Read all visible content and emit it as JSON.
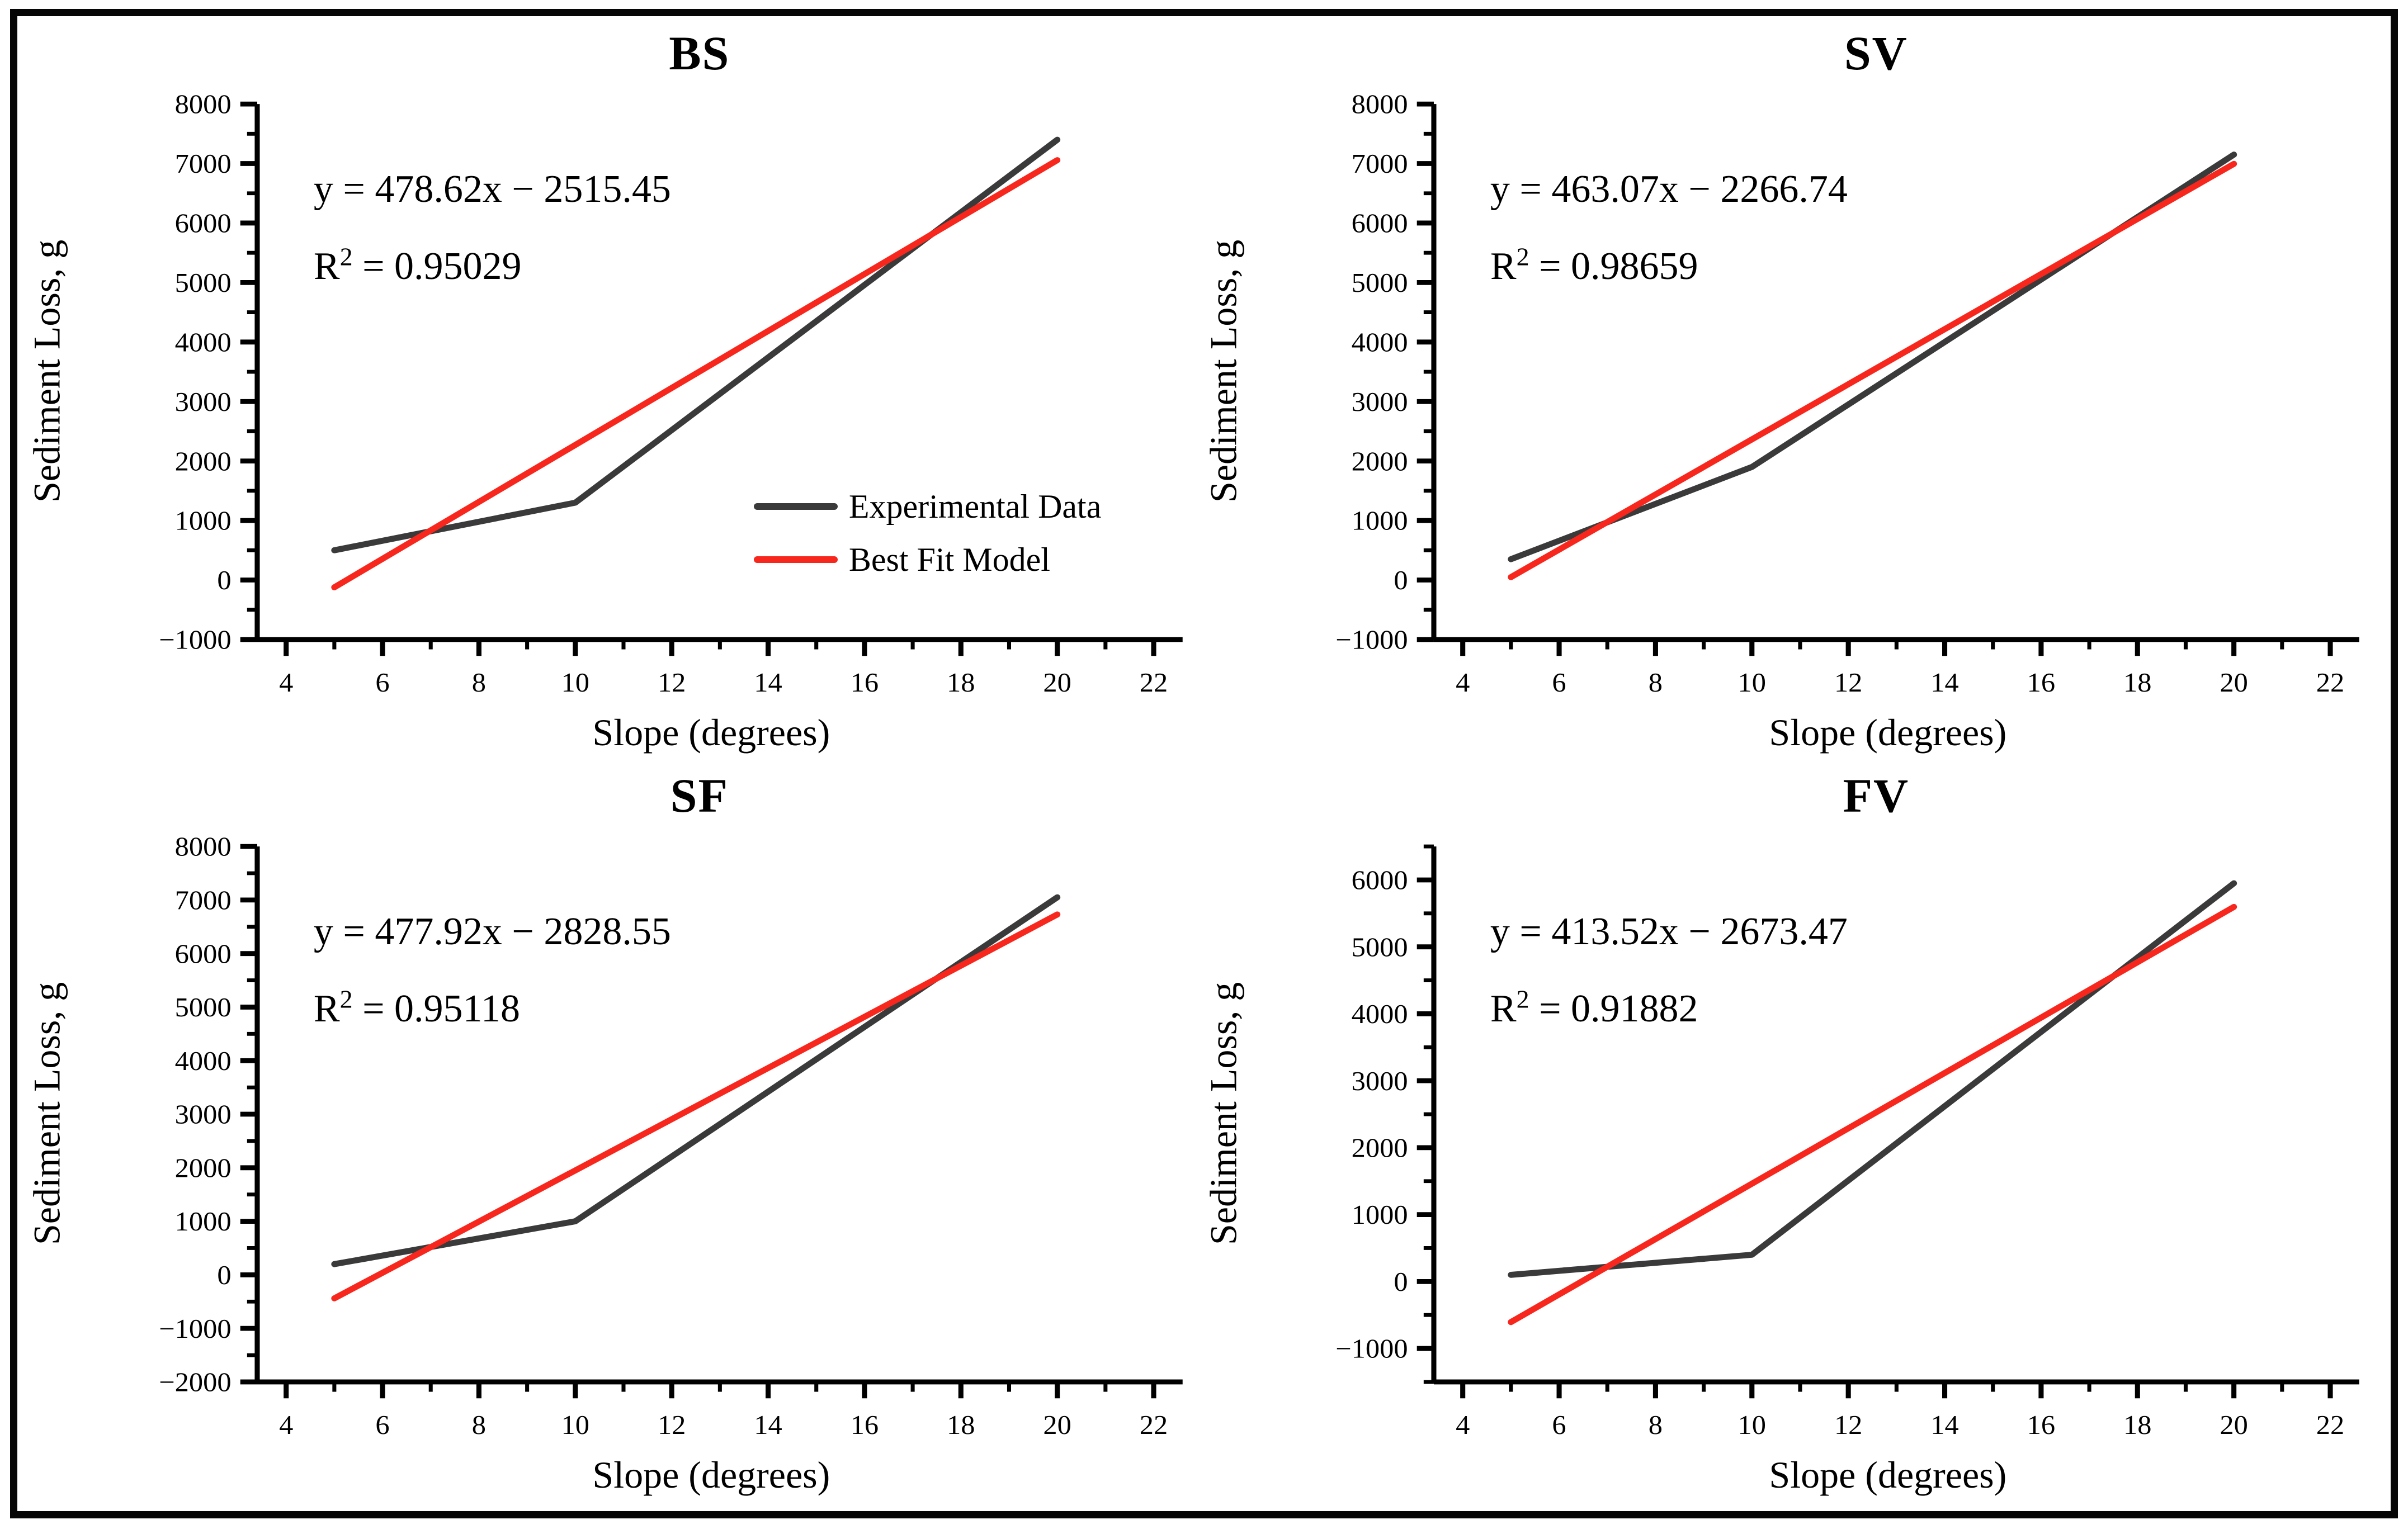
{
  "figure": {
    "background": "#ffffff",
    "frame_color": "#060606",
    "x_axis_label": "Slope (degrees)",
    "y_axis_label": "Sediment Loss, g"
  },
  "colors": {
    "experimental": "#3a3a3a",
    "best_fit": "#f8271d",
    "axis": "#000000"
  },
  "legend": {
    "items": [
      {
        "label": "Experimental Data",
        "color": "#3a3a3a"
      },
      {
        "label": "Best Fit Model",
        "color": "#f8271d"
      }
    ]
  },
  "chart_data": [
    {
      "type": "line",
      "title": "BS",
      "equation": "y = 478.62x − 2515.45",
      "r2": {
        "base": "R",
        "sup": "2",
        "rest": " = 0.95029"
      },
      "r_squared_value": 0.95029,
      "fit": {
        "slope": 478.62,
        "intercept": -2515.45
      },
      "xlabel": "Slope (degrees)",
      "ylabel": "Sediment Loss, g",
      "xlim": [
        3.4,
        22.6
      ],
      "ylim": [
        -1000,
        8000
      ],
      "xticks": [
        4,
        6,
        8,
        10,
        12,
        14,
        16,
        18,
        20,
        22
      ],
      "xminor": [
        5,
        7,
        9,
        11,
        13,
        15,
        17,
        19,
        21
      ],
      "yticks": [
        -1000,
        0,
        1000,
        2000,
        3000,
        4000,
        5000,
        6000,
        7000,
        8000
      ],
      "grid": false,
      "legend_position": "lower right inside",
      "show_legend": true,
      "series": [
        {
          "name": "Experimental Data",
          "color": "#3a3a3a",
          "x": [
            5,
            10,
            20
          ],
          "y": [
            500,
            1300,
            7400
          ]
        },
        {
          "name": "Best Fit Model",
          "color": "#f8271d",
          "x": [
            5,
            20
          ],
          "y": [
            -122.35,
            7057.0
          ]
        }
      ]
    },
    {
      "type": "line",
      "title": "SV",
      "equation": "y = 463.07x − 2266.74",
      "r2": {
        "base": "R",
        "sup": "2",
        "rest": " = 0.98659"
      },
      "r_squared_value": 0.98659,
      "fit": {
        "slope": 463.07,
        "intercept": -2266.74
      },
      "xlabel": "Slope (degrees)",
      "ylabel": "Sediment Loss, g",
      "xlim": [
        3.4,
        22.6
      ],
      "ylim": [
        -1000,
        8000
      ],
      "xticks": [
        4,
        6,
        8,
        10,
        12,
        14,
        16,
        18,
        20,
        22
      ],
      "xminor": [
        5,
        7,
        9,
        11,
        13,
        15,
        17,
        19,
        21
      ],
      "yticks": [
        -1000,
        0,
        1000,
        2000,
        3000,
        4000,
        5000,
        6000,
        7000,
        8000
      ],
      "grid": false,
      "show_legend": false,
      "series": [
        {
          "name": "Experimental Data",
          "color": "#3a3a3a",
          "x": [
            5,
            10,
            20
          ],
          "y": [
            350,
            1900,
            7150
          ]
        },
        {
          "name": "Best Fit Model",
          "color": "#f8271d",
          "x": [
            5,
            20
          ],
          "y": [
            48.61,
            6994.66
          ]
        }
      ]
    },
    {
      "type": "line",
      "title": "SF",
      "equation": "y = 477.92x − 2828.55",
      "r2": {
        "base": "R",
        "sup": "2",
        "rest": " = 0.95118"
      },
      "r_squared_value": 0.95118,
      "fit": {
        "slope": 477.92,
        "intercept": -2828.55
      },
      "xlabel": "Slope (degrees)",
      "ylabel": "Sediment Loss, g",
      "xlim": [
        3.4,
        22.6
      ],
      "ylim": [
        -2000,
        8000
      ],
      "xticks": [
        4,
        6,
        8,
        10,
        12,
        14,
        16,
        18,
        20,
        22
      ],
      "xminor": [
        5,
        7,
        9,
        11,
        13,
        15,
        17,
        19,
        21
      ],
      "yticks": [
        -2000,
        -1000,
        0,
        1000,
        2000,
        3000,
        4000,
        5000,
        6000,
        7000,
        8000
      ],
      "grid": false,
      "show_legend": false,
      "series": [
        {
          "name": "Experimental Data",
          "color": "#3a3a3a",
          "x": [
            5,
            10,
            20
          ],
          "y": [
            200,
            1000,
            7050
          ]
        },
        {
          "name": "Best Fit Model",
          "color": "#f8271d",
          "x": [
            5,
            20
          ],
          "y": [
            -438.95,
            6729.85
          ]
        }
      ]
    },
    {
      "type": "line",
      "title": "FV",
      "equation": "y = 413.52x − 2673.47",
      "r2": {
        "base": "R",
        "sup": "2",
        "rest": " = 0.91882"
      },
      "r_squared_value": 0.91882,
      "fit": {
        "slope": 413.52,
        "intercept": -2673.47
      },
      "xlabel": "Slope (degrees)",
      "ylabel": "Sediment Loss, g",
      "xlim": [
        3.4,
        22.6
      ],
      "ylim": [
        -1500,
        6500
      ],
      "xticks": [
        4,
        6,
        8,
        10,
        12,
        14,
        16,
        18,
        20,
        22
      ],
      "xminor": [
        5,
        7,
        9,
        11,
        13,
        15,
        17,
        19,
        21
      ],
      "yticks": [
        -1000,
        0,
        1000,
        2000,
        3000,
        4000,
        5000,
        6000
      ],
      "grid": false,
      "show_legend": false,
      "series": [
        {
          "name": "Experimental Data",
          "color": "#3a3a3a",
          "x": [
            5,
            10,
            20
          ],
          "y": [
            100,
            400,
            5950
          ]
        },
        {
          "name": "Best Fit Model",
          "color": "#f8271d",
          "x": [
            5,
            20
          ],
          "y": [
            -605.87,
            5596.93
          ]
        }
      ]
    }
  ]
}
